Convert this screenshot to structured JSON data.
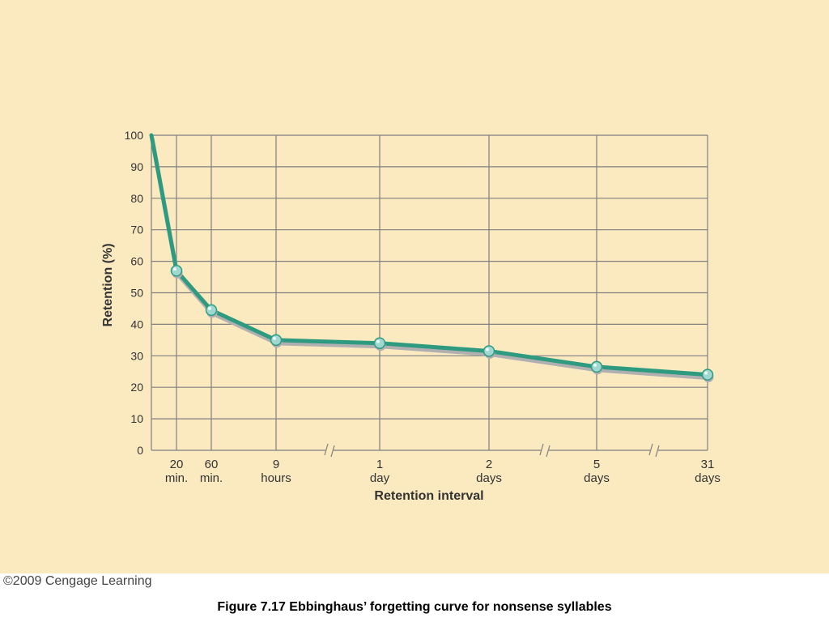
{
  "chart_data": {
    "type": "line",
    "title": "",
    "xlabel": "Retention interval",
    "ylabel": "Retention (%)",
    "ylim": [
      0,
      100
    ],
    "yticks": [
      0,
      10,
      20,
      30,
      40,
      50,
      60,
      70,
      80,
      90,
      100
    ],
    "grid": true,
    "axis_breaks": [
      "between 9 hours and 1 day",
      "between 2 days and 5 days",
      "between 5 days and 31 days"
    ],
    "xticks": [
      {
        "line1": "20",
        "line2": "min."
      },
      {
        "line1": "60",
        "line2": "min."
      },
      {
        "line1": "9",
        "line2": "hours"
      },
      {
        "line1": "1",
        "line2": "day"
      },
      {
        "line1": "2",
        "line2": "days"
      },
      {
        "line1": "5",
        "line2": "days"
      },
      {
        "line1": "31",
        "line2": "days"
      }
    ],
    "series": [
      {
        "color": "#2e9a80",
        "points": [
          {
            "x": "0 min.",
            "y": 100
          },
          {
            "x": "20 min.",
            "y": 57
          },
          {
            "x": "60 min.",
            "y": 44.5
          },
          {
            "x": "9 hours",
            "y": 35
          },
          {
            "x": "1 day",
            "y": 34
          },
          {
            "x": "2 days",
            "y": 31.5
          },
          {
            "x": "5 days",
            "y": 26.5
          },
          {
            "x": "31 days",
            "y": 24
          }
        ]
      }
    ]
  },
  "colors": {
    "background": "#fbeac0",
    "grid": "#7f7f7f",
    "line": "#2e9a80",
    "shadow": "#b0b0b0",
    "marker": "#9fd8d0"
  },
  "copyright": "©2009 Cengage Learning",
  "caption": "Figure 7.17  Ebbinghaus’ forgetting curve for nonsense syllables"
}
